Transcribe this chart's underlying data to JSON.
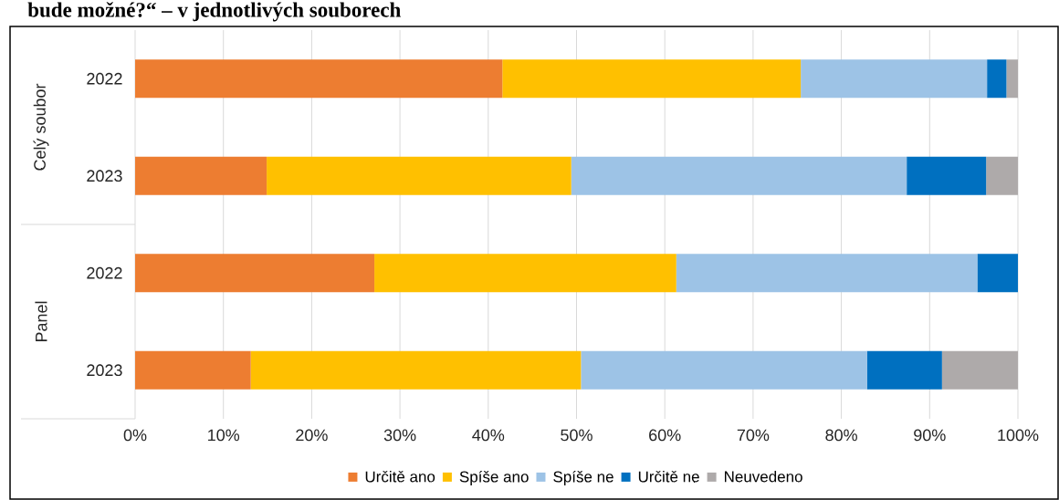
{
  "chart_data": {
    "type": "bar",
    "orientation": "horizontal",
    "stacked": true,
    "title": "bude možné?“ – v jednotlivých souborech",
    "categories": [
      "2022",
      "2023",
      "2022",
      "2023"
    ],
    "annotations": [
      "Celý soubor",
      "Panel"
    ],
    "series": [
      {
        "name": "Určitě ano",
        "color": "#ed7d31",
        "values": [
          41.6,
          14.9,
          27.1,
          13.1
        ]
      },
      {
        "name": "Spíše ano",
        "color": "#ffc000",
        "values": [
          33.8,
          34.5,
          34.2,
          37.4
        ]
      },
      {
        "name": "Spíše ne",
        "color": "#9dc3e6",
        "values": [
          21.1,
          38.0,
          34.1,
          32.4
        ]
      },
      {
        "name": "Určitě ne",
        "color": "#0070c0",
        "values": [
          2.2,
          9.0,
          4.6,
          8.5
        ]
      },
      {
        "name": "Neuvedeno",
        "color": "#aeaaaa",
        "values": [
          1.3,
          3.6,
          null,
          8.6
        ]
      }
    ],
    "xlim": [
      0,
      100
    ],
    "xticks": [
      {
        "value": 0,
        "label": "0%"
      },
      {
        "value": 10,
        "label": "10%"
      },
      {
        "value": 20,
        "label": "20%"
      },
      {
        "value": 30,
        "label": "30%"
      },
      {
        "value": 40,
        "label": "40%"
      },
      {
        "value": 50,
        "label": "50%"
      },
      {
        "value": 60,
        "label": "60%"
      },
      {
        "value": 70,
        "label": "70%"
      },
      {
        "value": 80,
        "label": "80%"
      },
      {
        "value": 90,
        "label": "90%"
      },
      {
        "value": 100,
        "label": "100%"
      }
    ],
    "grid": "x",
    "legend": "bottom"
  }
}
